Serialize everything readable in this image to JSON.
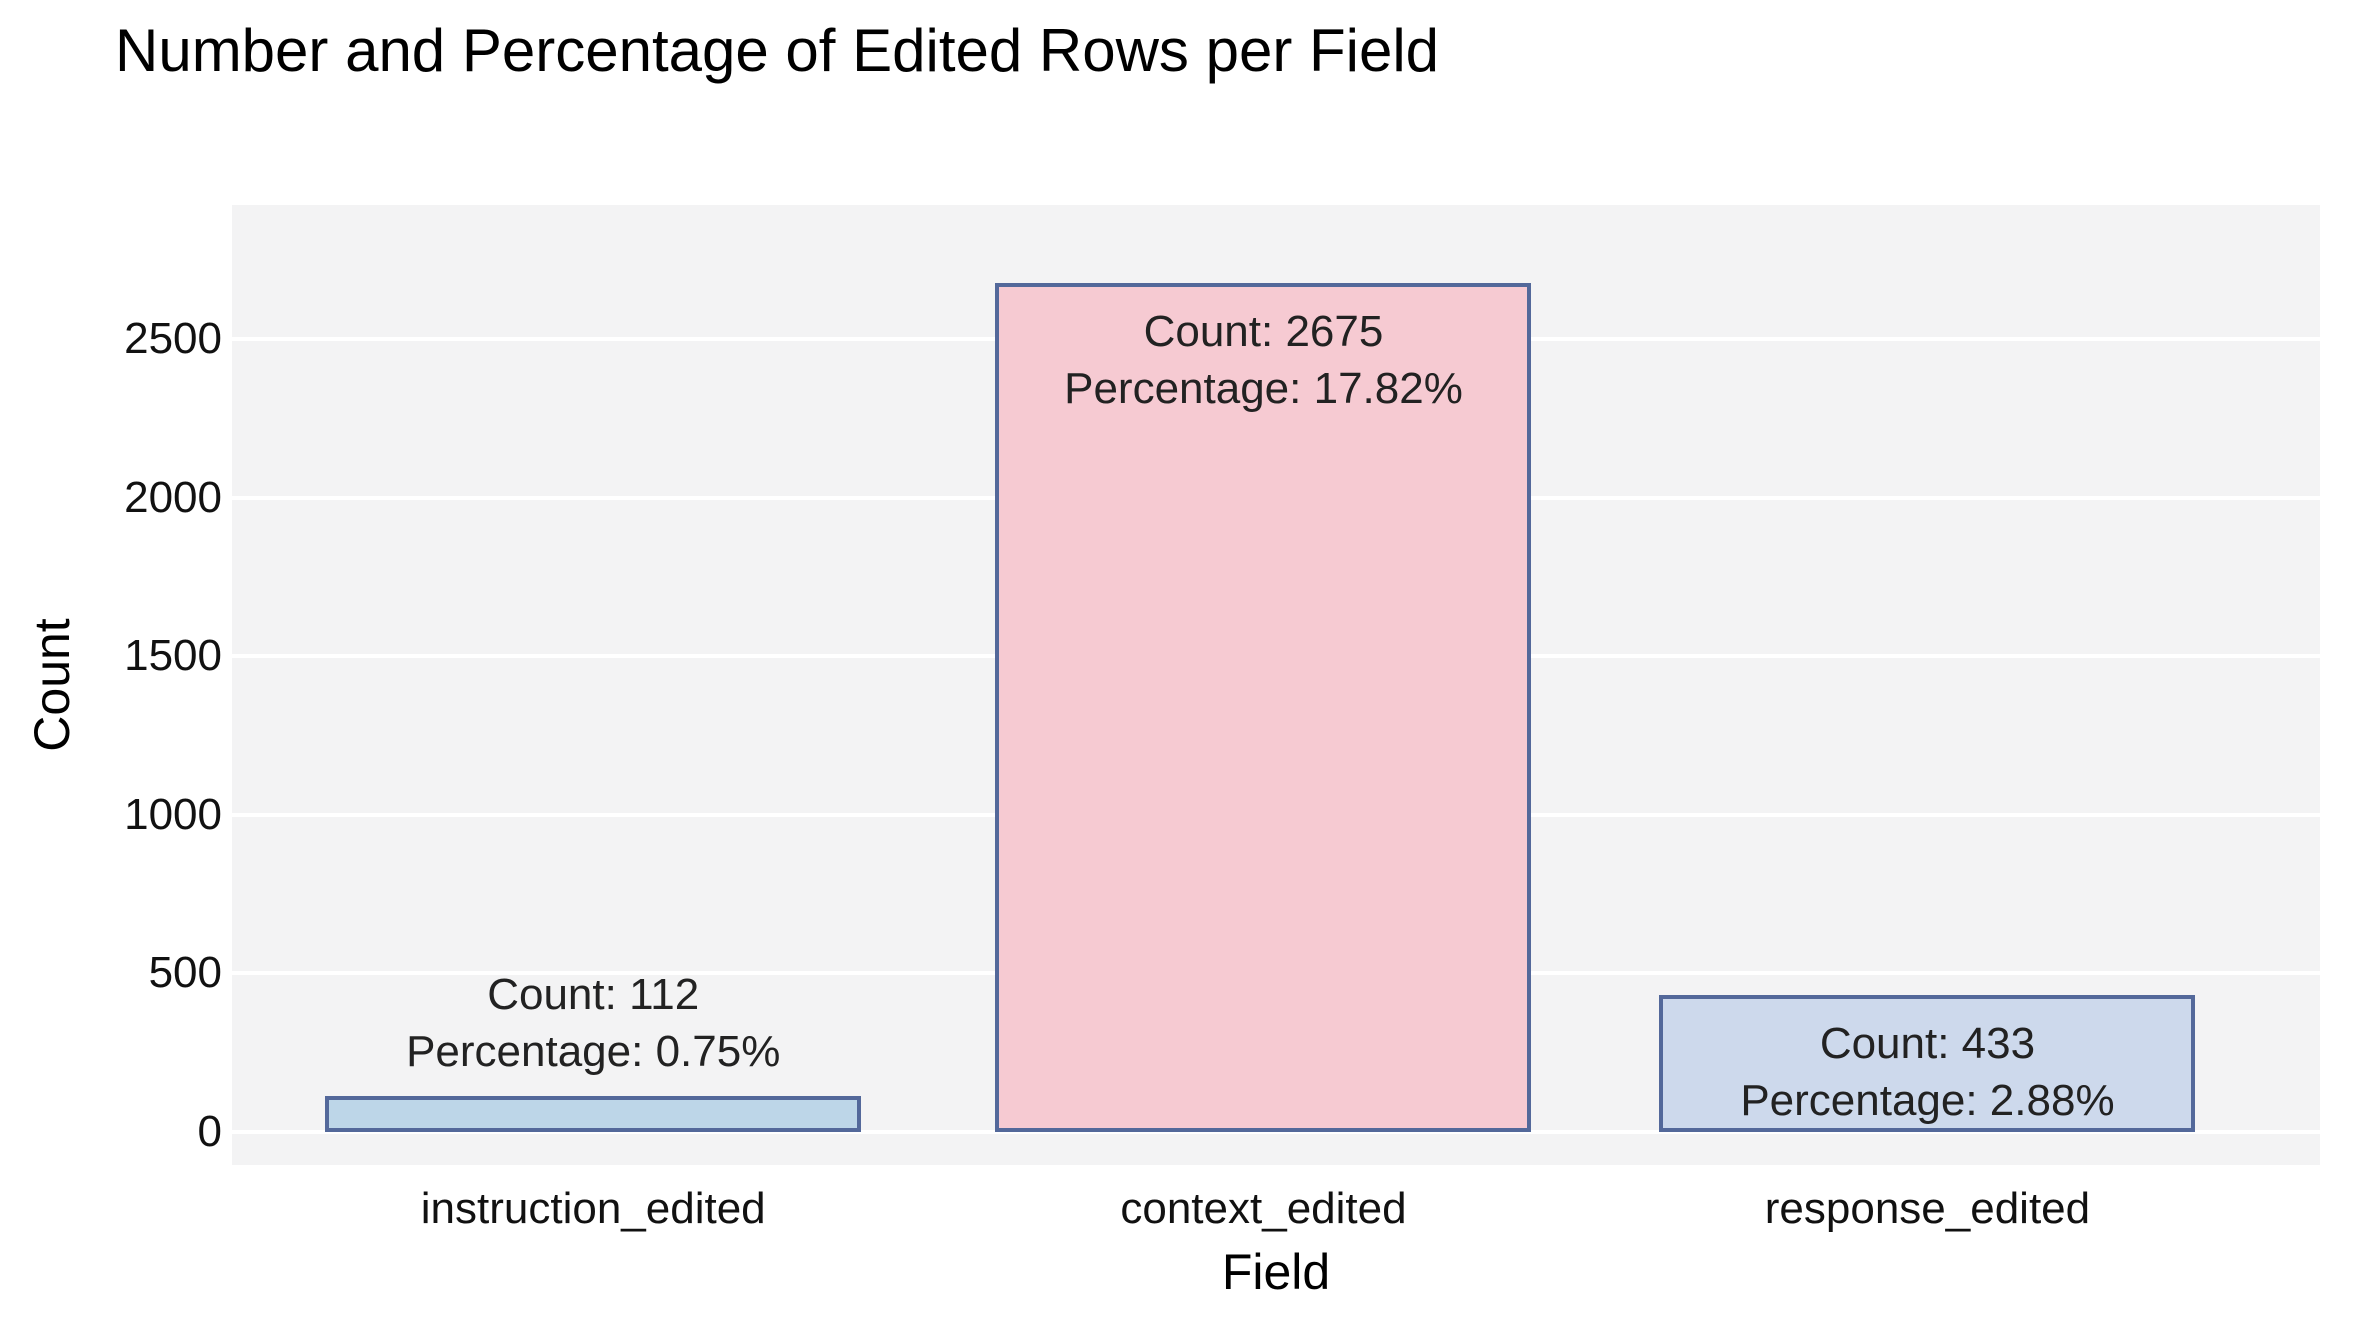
{
  "title": "Number and Percentage of Edited Rows per Field",
  "chart_data": {
    "type": "bar",
    "title": "Number and Percentage of Edited Rows per Field",
    "xlabel": "Field",
    "ylabel": "Count",
    "categories": [
      "instruction_edited",
      "context_edited",
      "response_edited"
    ],
    "values": [
      112,
      2675,
      433
    ],
    "percentages": [
      0.75,
      17.82,
      2.88
    ],
    "annotations": [
      {
        "lines": [
          "Count: 112",
          "Percentage: 0.75%"
        ],
        "position": "above"
      },
      {
        "lines": [
          "Count: 2675",
          "Percentage: 17.82%"
        ],
        "position": "inside"
      },
      {
        "lines": [
          "Count: 433",
          "Percentage: 2.88%"
        ],
        "position": "inside"
      }
    ],
    "yticks": [
      0,
      500,
      1000,
      1500,
      2000,
      2500
    ],
    "ylim": [
      -104,
      2922
    ],
    "grid": true,
    "legend": false,
    "colors": {
      "bar_fills": [
        "#bdd6e8",
        "#f6cad2",
        "#cdd9ec"
      ],
      "bar_border": "#53689a",
      "plot_bg": "#f3f3f4",
      "gridline": "#ffffff",
      "annotation_text": "#222222",
      "tick_text": "#111111",
      "title_text": "#000000"
    }
  }
}
